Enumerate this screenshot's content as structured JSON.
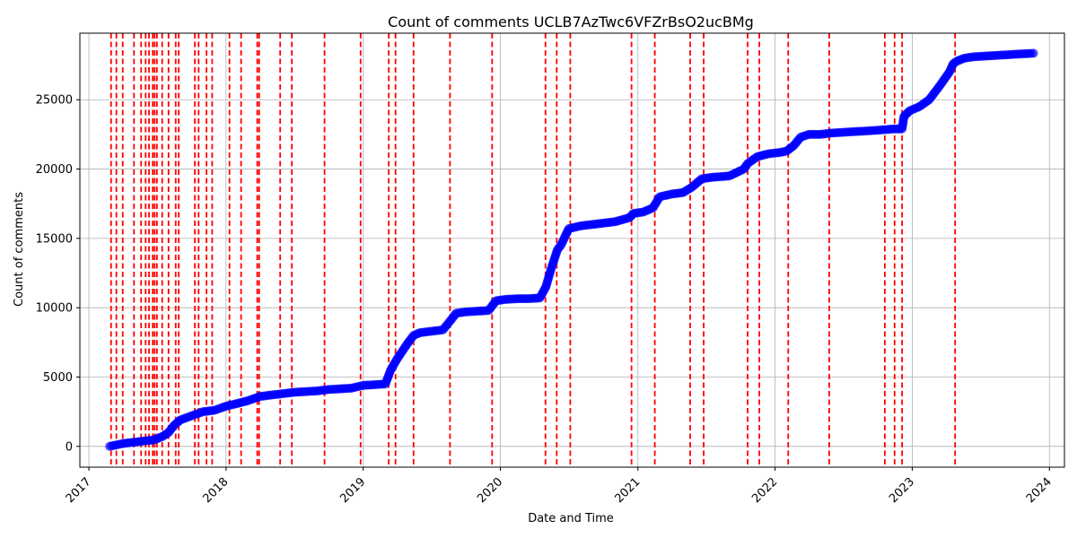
{
  "chart_data": {
    "type": "scatter",
    "title": "Count of comments UCLB7AzTwc6VFZrBsO2ucBMg",
    "xlabel": "Date and Time",
    "ylabel": "Count of comments",
    "x_ticks": [
      "2017",
      "2018",
      "2019",
      "2020",
      "2021",
      "2022",
      "2023",
      "2024"
    ],
    "y_ticks": [
      "0",
      "5000",
      "10000",
      "15000",
      "20000",
      "25000"
    ],
    "xlim": [
      "2016-12-08",
      "2024-02-10"
    ],
    "ylim": [
      -1500,
      29800
    ],
    "grid": true,
    "point_color": "#0000ff",
    "vline_color": "#ff0000",
    "series": [
      {
        "x": [
          "2017-02-25",
          "2017-04-01",
          "2017-05-01",
          "2017-06-01",
          "2017-06-20",
          "2017-07-01",
          "2017-07-15",
          "2017-08-01",
          "2017-08-15",
          "2017-09-01",
          "2017-10-01",
          "2017-11-01",
          "2017-12-01",
          "2018-01-01",
          "2018-02-01",
          "2018-03-01",
          "2018-04-01",
          "2018-05-01",
          "2018-06-01",
          "2018-07-01",
          "2018-08-01",
          "2018-09-01",
          "2018-10-01",
          "2018-11-01",
          "2018-12-01",
          "2019-01-01",
          "2019-02-01",
          "2019-03-01",
          "2019-03-15",
          "2019-04-01",
          "2019-05-01",
          "2019-05-15",
          "2019-06-01",
          "2019-07-01",
          "2019-08-01",
          "2019-08-25",
          "2019-09-05",
          "2019-10-01",
          "2019-11-01",
          "2019-12-01",
          "2019-12-20",
          "2020-01-15",
          "2020-02-15",
          "2020-03-15",
          "2020-04-15",
          "2020-05-01",
          "2020-05-15",
          "2020-06-01",
          "2020-06-10",
          "2020-07-01",
          "2020-08-01",
          "2020-09-01",
          "2020-10-01",
          "2020-11-01",
          "2020-12-10",
          "2020-12-20",
          "2021-01-15",
          "2021-02-10",
          "2021-02-28",
          "2021-04-01",
          "2021-05-01",
          "2021-05-25",
          "2021-06-20",
          "2021-07-15",
          "2021-09-01",
          "2021-10-10",
          "2021-10-20",
          "2021-11-15",
          "2021-12-15",
          "2022-01-15",
          "2022-02-01",
          "2022-02-20",
          "2022-03-10",
          "2022-04-01",
          "2022-05-01",
          "2022-06-01",
          "2022-08-01",
          "2022-10-01",
          "2022-11-15",
          "2022-12-05",
          "2022-12-10",
          "2022-12-25",
          "2023-01-20",
          "2023-02-15",
          "2023-03-15",
          "2023-04-10",
          "2023-04-20",
          "2023-05-01",
          "2023-05-20",
          "2023-06-15",
          "2023-07-15",
          "2023-08-15",
          "2023-09-15",
          "2023-10-15",
          "2023-11-20"
        ],
        "y": [
          0,
          200,
          300,
          400,
          450,
          550,
          700,
          1000,
          1500,
          1900,
          2200,
          2500,
          2600,
          2900,
          3100,
          3300,
          3600,
          3700,
          3800,
          3900,
          3950,
          4000,
          4100,
          4150,
          4200,
          4400,
          4450,
          4500,
          5500,
          6300,
          7500,
          8000,
          8200,
          8300,
          8400,
          9200,
          9600,
          9700,
          9750,
          9800,
          10500,
          10600,
          10650,
          10650,
          10700,
          11500,
          12800,
          14200,
          14500,
          15700,
          15900,
          16000,
          16100,
          16200,
          16500,
          16800,
          16900,
          17200,
          18000,
          18200,
          18300,
          18700,
          19300,
          19400,
          19500,
          20000,
          20400,
          20900,
          21100,
          21200,
          21300,
          21700,
          22300,
          22500,
          22500,
          22600,
          22700,
          22800,
          22900,
          22900,
          23800,
          24200,
          24500,
          25000,
          26000,
          27000,
          27600,
          27800,
          28000,
          28100,
          28150,
          28200,
          28250,
          28300,
          28350
        ]
      }
    ],
    "vlines": [
      "2017-03-01",
      "2017-03-15",
      "2017-04-01",
      "2017-05-01",
      "2017-05-20",
      "2017-06-01",
      "2017-06-10",
      "2017-06-20",
      "2017-06-25",
      "2017-07-01",
      "2017-07-15",
      "2017-08-01",
      "2017-08-20",
      "2017-08-28",
      "2017-10-10",
      "2017-10-20",
      "2017-11-10",
      "2017-11-25",
      "2018-01-10",
      "2018-02-10",
      "2018-03-25",
      "2018-03-30",
      "2018-05-25",
      "2018-06-25",
      "2018-09-20",
      "2018-12-25",
      "2019-03-10",
      "2019-03-28",
      "2019-05-15",
      "2019-08-20",
      "2019-12-10",
      "2020-04-30",
      "2020-05-30",
      "2020-07-05",
      "2020-12-15",
      "2021-02-15",
      "2021-05-20",
      "2021-06-25",
      "2021-10-20",
      "2021-11-20",
      "2022-02-05",
      "2022-05-25",
      "2022-10-20",
      "2022-11-15",
      "2022-12-05",
      "2023-04-25"
    ]
  }
}
